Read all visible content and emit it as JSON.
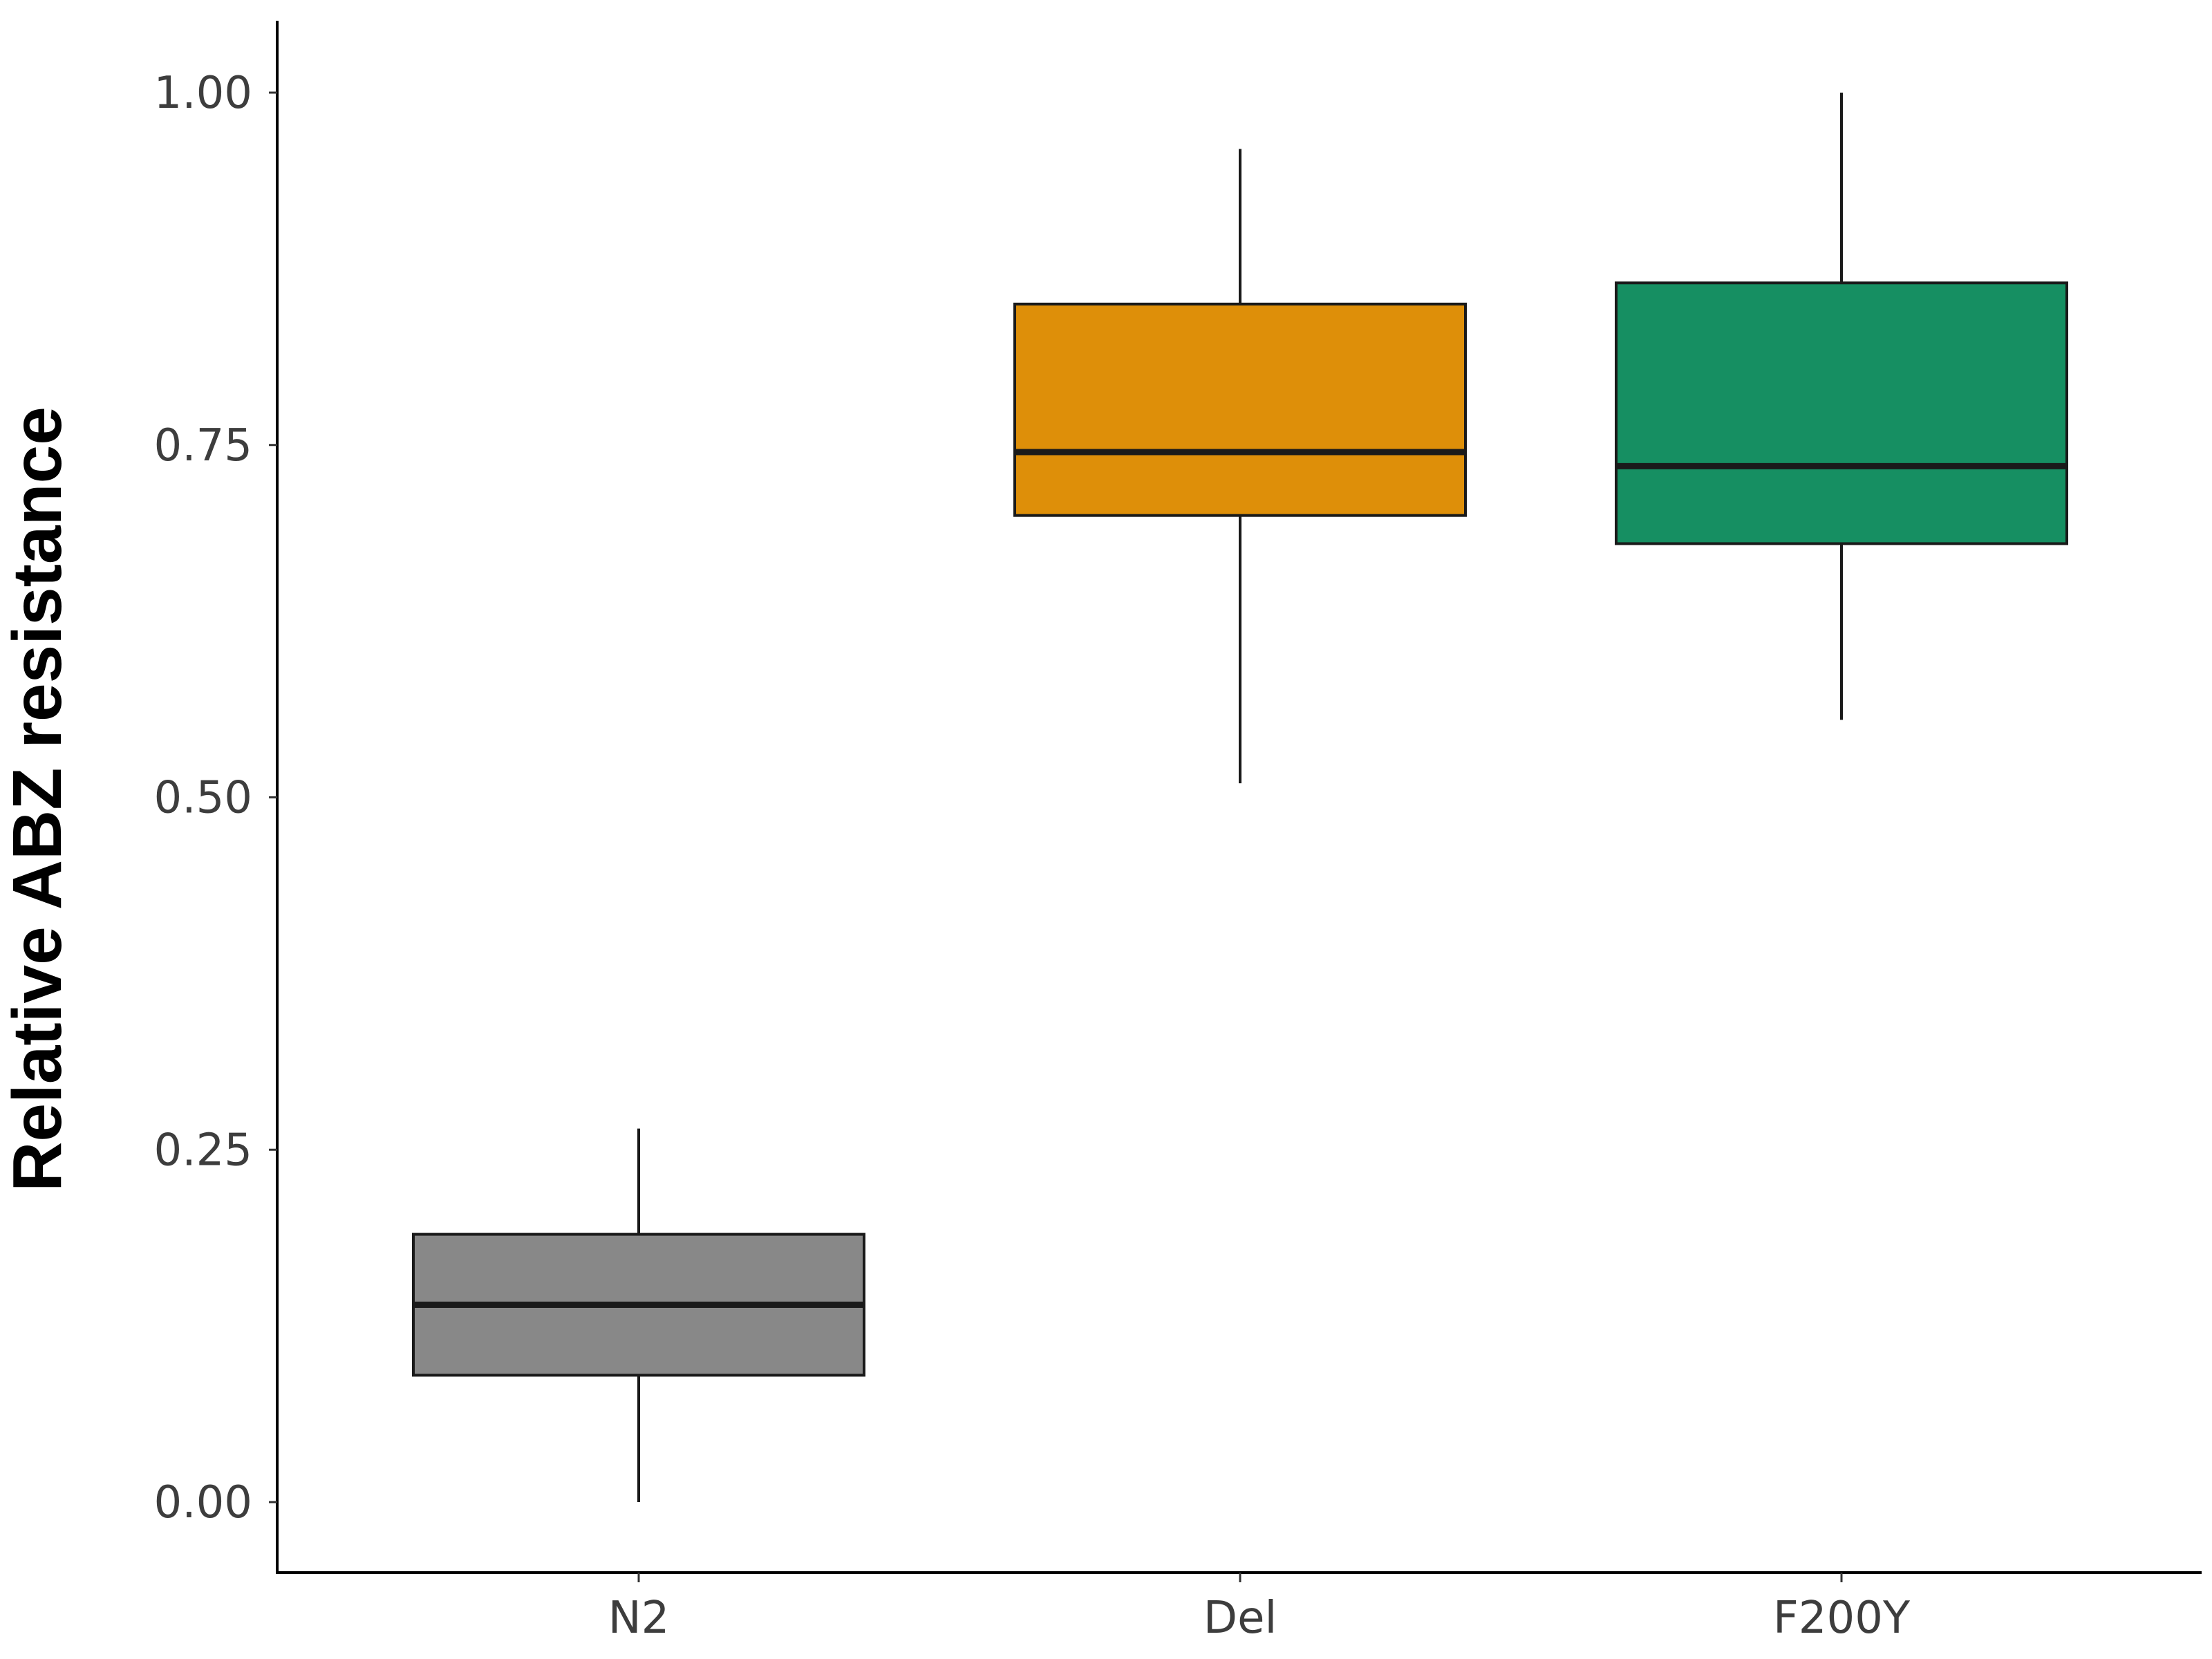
{
  "chart_data": {
    "type": "boxplot",
    "title": "",
    "xlabel": "",
    "ylabel": "Relative ABZ resistance",
    "categories": [
      "N2",
      "Del",
      "F200Y"
    ],
    "boxes": [
      {
        "category": "N2",
        "min": 0.0,
        "q1": 0.09,
        "median": 0.14,
        "q3": 0.19,
        "max": 0.265,
        "color": "#888888"
      },
      {
        "category": "Del",
        "min": 0.51,
        "q1": 0.7,
        "median": 0.745,
        "q3": 0.85,
        "max": 0.96,
        "color": "#DE8F09"
      },
      {
        "category": "F200Y",
        "min": 0.555,
        "q1": 0.68,
        "median": 0.735,
        "q3": 0.865,
        "max": 1.0,
        "color": "#168F62"
      }
    ],
    "yticks": [
      "0.00",
      "0.25",
      "0.50",
      "0.75",
      "1.00"
    ],
    "ylim": [
      -0.05,
      1.05
    ],
    "grid": false,
    "legend": "none"
  }
}
